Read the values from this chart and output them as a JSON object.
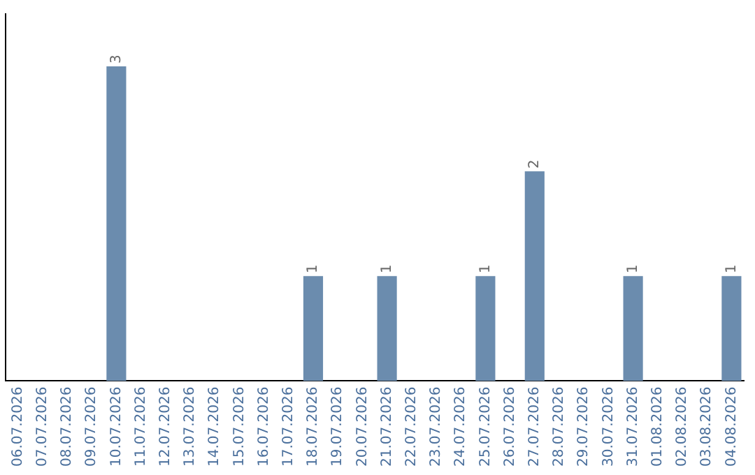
{
  "chart_data": {
    "type": "bar",
    "categories": [
      "06.07.2026",
      "07.07.2026",
      "08.07.2026",
      "09.07.2026",
      "10.07.2026",
      "11.07.2026",
      "12.07.2026",
      "13.07.2026",
      "14.07.2026",
      "15.07.2026",
      "16.07.2026",
      "17.07.2026",
      "18.07.2026",
      "19.07.2026",
      "20.07.2026",
      "21.07.2026",
      "22.07.2026",
      "23.07.2026",
      "24.07.2026",
      "25.07.2026",
      "26.07.2026",
      "27.07.2026",
      "28.07.2026",
      "29.07.2026",
      "30.07.2026",
      "31.07.2026",
      "01.08.2026",
      "02.08.2026",
      "03.08.2026",
      "04.08.2026"
    ],
    "values": [
      0,
      0,
      0,
      0,
      3,
      0,
      0,
      0,
      0,
      0,
      0,
      0,
      1,
      0,
      0,
      1,
      0,
      0,
      0,
      1,
      0,
      2,
      0,
      0,
      0,
      1,
      0,
      0,
      0,
      1
    ],
    "value_labels": [
      null,
      null,
      null,
      null,
      "3",
      null,
      null,
      null,
      null,
      null,
      null,
      null,
      "1",
      null,
      null,
      "1",
      null,
      null,
      null,
      "1",
      null,
      "2",
      null,
      null,
      null,
      "1",
      null,
      null,
      null,
      "1"
    ],
    "color": "#6b8cae",
    "grid": false,
    "legend": false,
    "tick_labels": "x"
  }
}
